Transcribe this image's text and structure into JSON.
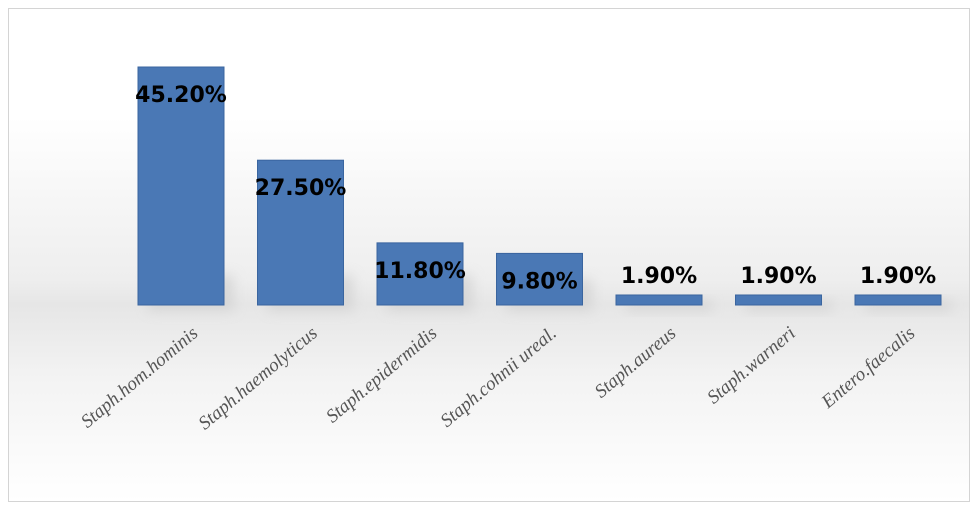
{
  "colors": {
    "bar": "#4a78b5",
    "bar_edge": "#3a659f",
    "shadow": "#c9c9c9"
  },
  "chart_data": {
    "type": "bar",
    "title": "",
    "xlabel": "",
    "ylabel": "",
    "categories": [
      "Staph.hom.hominis",
      "Staph.haemolyticus",
      "Staph.epidermidis",
      "Staph.cohnii ureal.",
      "Staph.aureus",
      "Staph.warneri",
      "Entero.faecalis"
    ],
    "values": [
      45.2,
      27.5,
      11.8,
      9.8,
      1.9,
      1.9,
      1.9
    ],
    "labels": [
      "45.20%",
      "27.50%",
      "11.80%",
      "9.80%",
      "1.90%",
      "1.90%",
      "1.90%"
    ],
    "ylim": [
      0,
      50
    ],
    "grid": false,
    "legend": "none"
  }
}
